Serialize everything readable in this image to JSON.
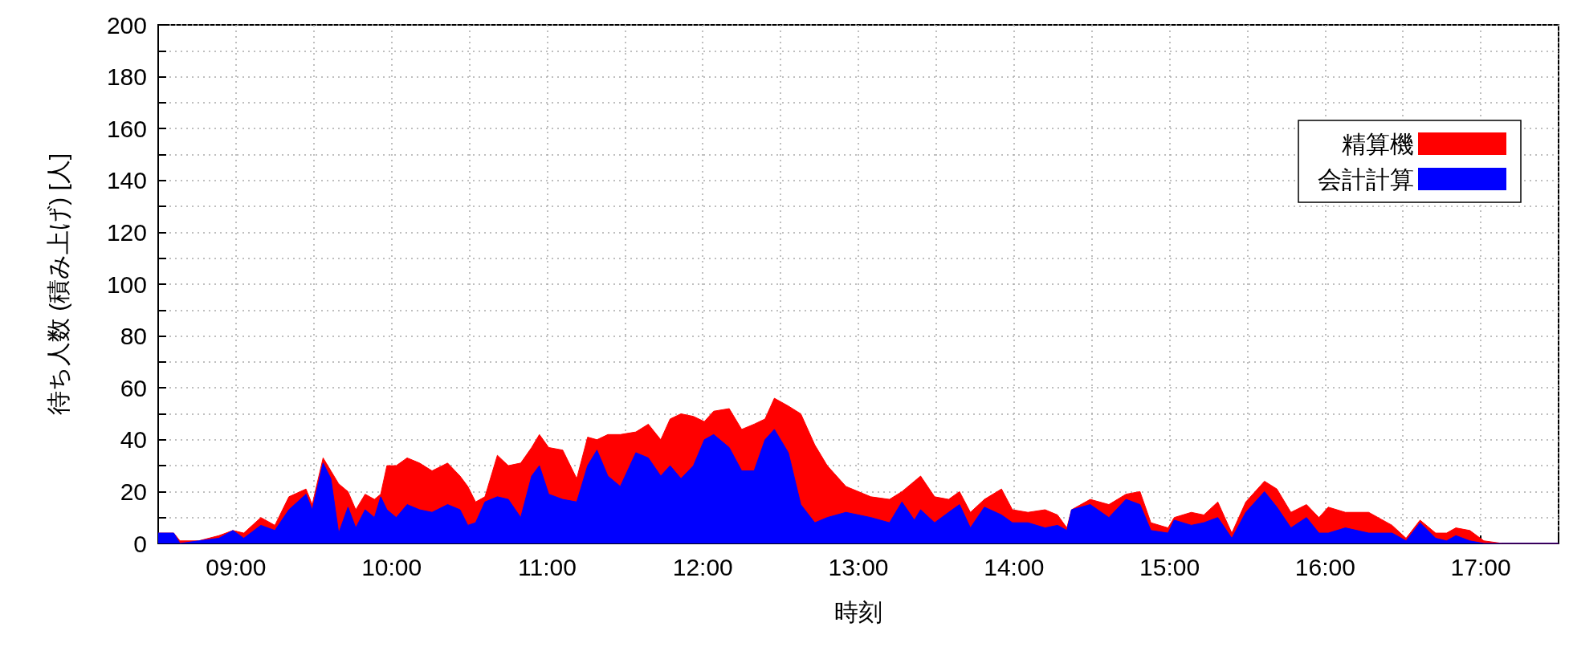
{
  "chart_data": {
    "type": "area",
    "stacked": true,
    "xlabel": "時刻",
    "ylabel": "待ち人数 (積み上げ) [人]",
    "x": [
      8.5,
      8.6,
      8.64,
      8.76,
      8.89,
      8.98,
      9.05,
      9.16,
      9.25,
      9.34,
      9.45,
      9.49,
      9.56,
      9.61,
      9.66,
      9.72,
      9.77,
      9.83,
      9.89,
      9.93,
      9.97,
      10.03,
      10.1,
      10.18,
      10.26,
      10.36,
      10.44,
      10.49,
      10.54,
      10.6,
      10.68,
      10.75,
      10.83,
      10.9,
      10.95,
      11.01,
      11.1,
      11.19,
      11.26,
      11.32,
      11.39,
      11.47,
      11.57,
      11.65,
      11.73,
      11.79,
      11.86,
      11.94,
      12.01,
      12.07,
      12.17,
      12.25,
      12.33,
      12.4,
      12.46,
      12.55,
      12.63,
      12.72,
      12.8,
      12.92,
      13.08,
      13.2,
      13.28,
      13.36,
      13.4,
      13.49,
      13.58,
      13.65,
      13.72,
      13.81,
      13.92,
      13.99,
      14.09,
      14.2,
      14.28,
      14.34,
      14.37,
      14.49,
      14.61,
      14.72,
      14.81,
      14.88,
      14.99,
      15.03,
      15.14,
      15.22,
      15.31,
      15.4,
      15.49,
      15.61,
      15.69,
      15.78,
      15.88,
      15.96,
      16.02,
      16.13,
      16.28,
      16.43,
      16.52,
      16.61,
      16.71,
      16.78,
      16.84,
      16.93,
      17.02,
      17.14,
      17.5
    ],
    "series": [
      {
        "name": "会計計算",
        "color": "#0000ff",
        "values": [
          4,
          4,
          0,
          1,
          2,
          5,
          2,
          7,
          5,
          13,
          19,
          13,
          31,
          25,
          4,
          14,
          6,
          13,
          10,
          18,
          13,
          10,
          15,
          13,
          12,
          15,
          13,
          7,
          8,
          16,
          18,
          17,
          10,
          26,
          30,
          19,
          17,
          16,
          30,
          36,
          26,
          22,
          35,
          33,
          26,
          30,
          25,
          30,
          40,
          42,
          37,
          28,
          28,
          40,
          44,
          35,
          15,
          8,
          10,
          12,
          10,
          8,
          16,
          9,
          13,
          8,
          12,
          15,
          6,
          14,
          11,
          8,
          8,
          6,
          7,
          5,
          13,
          15,
          10,
          17,
          15,
          5,
          4,
          9,
          7,
          8,
          10,
          2,
          12,
          20,
          14,
          6,
          10,
          4,
          4,
          6,
          4,
          4,
          1,
          8,
          2,
          1,
          3,
          1,
          0,
          0,
          0
        ]
      },
      {
        "name": "精算機",
        "color": "#ff0000",
        "values": [
          0,
          0,
          1,
          0,
          1,
          0,
          2,
          3,
          2,
          5,
          2,
          2,
          2,
          3,
          19,
          6,
          7,
          6,
          7,
          1,
          17,
          20,
          18,
          18,
          16,
          16,
          13,
          15,
          8,
          2,
          16,
          13,
          21,
          11,
          12,
          18,
          19,
          9,
          11,
          4,
          16,
          20,
          8,
          13,
          14,
          18,
          25,
          19,
          7,
          9,
          15,
          16,
          18,
          8,
          12,
          18,
          35,
          30,
          20,
          10,
          8,
          9,
          4,
          15,
          13,
          10,
          5,
          5,
          6,
          3,
          10,
          5,
          4,
          7,
          4,
          1,
          0,
          2,
          5,
          2,
          5,
          3,
          2,
          1,
          5,
          3,
          6,
          2,
          4,
          4,
          7,
          6,
          5,
          6,
          10,
          6,
          8,
          3,
          1,
          1,
          2,
          3,
          3,
          4,
          1,
          0,
          0
        ]
      }
    ],
    "xlim": [
      8.5,
      17.5
    ],
    "xticks": [
      {
        "value": 8.5,
        "label": null
      },
      {
        "value": 9,
        "label": "09:00"
      },
      {
        "value": 9.5,
        "label": null
      },
      {
        "value": 10,
        "label": "10:00"
      },
      {
        "value": 10.5,
        "label": null
      },
      {
        "value": 11,
        "label": "11:00"
      },
      {
        "value": 11.5,
        "label": null
      },
      {
        "value": 12,
        "label": "12:00"
      },
      {
        "value": 12.5,
        "label": null
      },
      {
        "value": 13,
        "label": "13:00"
      },
      {
        "value": 13.5,
        "label": null
      },
      {
        "value": 14,
        "label": "14:00"
      },
      {
        "value": 14.5,
        "label": null
      },
      {
        "value": 15,
        "label": "15:00"
      },
      {
        "value": 15.5,
        "label": null
      },
      {
        "value": 16,
        "label": "16:00"
      },
      {
        "value": 16.5,
        "label": null
      },
      {
        "value": 17,
        "label": "17:00"
      },
      {
        "value": 17.5,
        "label": null
      }
    ],
    "ylim": [
      0,
      200
    ],
    "yticks": [
      0,
      {
        "value": 10,
        "label": null
      },
      20,
      {
        "value": 30,
        "label": null
      },
      40,
      {
        "value": 50,
        "label": null
      },
      60,
      {
        "value": 70,
        "label": null
      },
      80,
      {
        "value": 90,
        "label": null
      },
      100,
      {
        "value": 110,
        "label": null
      },
      120,
      {
        "value": 130,
        "label": null
      },
      140,
      {
        "value": 150,
        "label": null
      },
      160,
      {
        "value": 170,
        "label": null
      },
      180,
      {
        "value": 190,
        "label": null
      },
      200
    ],
    "grid": true,
    "legend": "top right",
    "marker": "none"
  }
}
